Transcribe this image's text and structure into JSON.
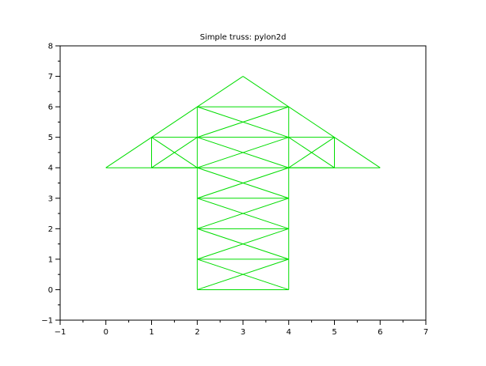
{
  "chart_data": {
    "type": "line",
    "title": "Simple truss: pylon2d",
    "xlabel": "",
    "ylabel": "",
    "xlim": [
      -1,
      7
    ],
    "ylim": [
      -1,
      8
    ],
    "x_ticks": [
      -1,
      0,
      1,
      2,
      3,
      4,
      5,
      6,
      7
    ],
    "y_ticks": [
      -1,
      0,
      1,
      2,
      3,
      4,
      5,
      6,
      7,
      8
    ],
    "grid": false,
    "legend": "none",
    "line_color": "#00dd00",
    "axis_color": "#000000",
    "segments": [
      [
        [
          2,
          0
        ],
        [
          4,
          0
        ]
      ],
      [
        [
          2,
          1
        ],
        [
          4,
          1
        ]
      ],
      [
        [
          2,
          2
        ],
        [
          4,
          2
        ]
      ],
      [
        [
          2,
          3
        ],
        [
          4,
          3
        ]
      ],
      [
        [
          2,
          4
        ],
        [
          4,
          4
        ]
      ],
      [
        [
          2,
          5
        ],
        [
          4,
          5
        ]
      ],
      [
        [
          2,
          6
        ],
        [
          4,
          6
        ]
      ],
      [
        [
          2,
          0
        ],
        [
          2,
          1
        ]
      ],
      [
        [
          2,
          1
        ],
        [
          2,
          2
        ]
      ],
      [
        [
          2,
          2
        ],
        [
          2,
          3
        ]
      ],
      [
        [
          2,
          3
        ],
        [
          2,
          4
        ]
      ],
      [
        [
          2,
          4
        ],
        [
          2,
          5
        ]
      ],
      [
        [
          2,
          5
        ],
        [
          2,
          6
        ]
      ],
      [
        [
          4,
          0
        ],
        [
          4,
          1
        ]
      ],
      [
        [
          4,
          1
        ],
        [
          4,
          2
        ]
      ],
      [
        [
          4,
          2
        ],
        [
          4,
          3
        ]
      ],
      [
        [
          4,
          3
        ],
        [
          4,
          4
        ]
      ],
      [
        [
          4,
          4
        ],
        [
          4,
          5
        ]
      ],
      [
        [
          4,
          5
        ],
        [
          4,
          6
        ]
      ],
      [
        [
          2,
          0
        ],
        [
          4,
          1
        ]
      ],
      [
        [
          4,
          0
        ],
        [
          2,
          1
        ]
      ],
      [
        [
          2,
          1
        ],
        [
          4,
          2
        ]
      ],
      [
        [
          4,
          1
        ],
        [
          2,
          2
        ]
      ],
      [
        [
          2,
          2
        ],
        [
          4,
          3
        ]
      ],
      [
        [
          4,
          2
        ],
        [
          2,
          3
        ]
      ],
      [
        [
          2,
          3
        ],
        [
          4,
          4
        ]
      ],
      [
        [
          4,
          3
        ],
        [
          2,
          4
        ]
      ],
      [
        [
          2,
          4
        ],
        [
          4,
          5
        ]
      ],
      [
        [
          4,
          4
        ],
        [
          2,
          5
        ]
      ],
      [
        [
          2,
          5
        ],
        [
          4,
          6
        ]
      ],
      [
        [
          4,
          5
        ],
        [
          2,
          6
        ]
      ],
      [
        [
          0,
          4
        ],
        [
          2,
          4
        ]
      ],
      [
        [
          0,
          4
        ],
        [
          1,
          5
        ]
      ],
      [
        [
          1,
          4
        ],
        [
          2,
          4
        ]
      ],
      [
        [
          1,
          4
        ],
        [
          1,
          5
        ]
      ],
      [
        [
          1,
          5
        ],
        [
          2,
          5
        ]
      ],
      [
        [
          1,
          4
        ],
        [
          2,
          5
        ]
      ],
      [
        [
          1,
          5
        ],
        [
          2,
          4
        ]
      ],
      [
        [
          1,
          5
        ],
        [
          3,
          7
        ]
      ],
      [
        [
          4,
          4
        ],
        [
          6,
          4
        ]
      ],
      [
        [
          4,
          4
        ],
        [
          5,
          4
        ]
      ],
      [
        [
          6,
          4
        ],
        [
          5,
          5
        ]
      ],
      [
        [
          5,
          4
        ],
        [
          5,
          5
        ]
      ],
      [
        [
          4,
          5
        ],
        [
          5,
          5
        ]
      ],
      [
        [
          4,
          4
        ],
        [
          5,
          5
        ]
      ],
      [
        [
          4,
          5
        ],
        [
          5,
          4
        ]
      ],
      [
        [
          5,
          5
        ],
        [
          3,
          7
        ]
      ]
    ]
  }
}
